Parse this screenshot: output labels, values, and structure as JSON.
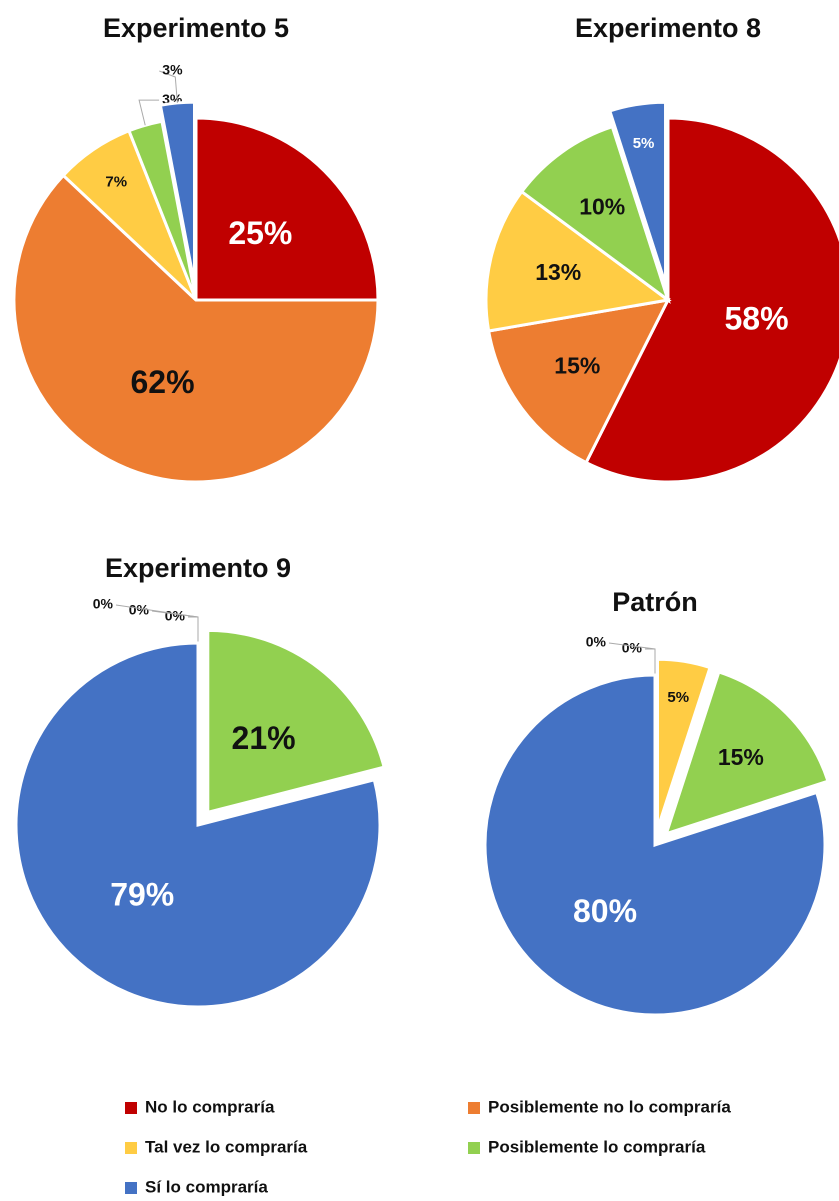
{
  "chart_data": [
    {
      "type": "pie",
      "title": "Experimento 5",
      "categories": [
        "No lo compraría",
        "Posiblemente no lo compraría",
        "Tal vez lo compraría",
        "Posiblemente lo compraría",
        "Sí lo compraría"
      ],
      "colors": [
        "#c00000",
        "#ed7d31",
        "#ffcc44",
        "#92d050",
        "#4472c4"
      ],
      "values": [
        25,
        62,
        7,
        3,
        3
      ],
      "value_labels": [
        "25%",
        "62%",
        "7%",
        "3%",
        "3%"
      ],
      "explode": [
        false,
        false,
        false,
        false,
        true
      ]
    },
    {
      "type": "pie",
      "title": "Experimento 8",
      "categories": [
        "No lo compraría",
        "Posiblemente no lo compraría",
        "Tal vez lo compraría",
        "Posiblemente lo compraría",
        "Sí lo compraría"
      ],
      "colors": [
        "#c00000",
        "#ed7d31",
        "#ffcc44",
        "#92d050",
        "#4472c4"
      ],
      "values": [
        58,
        15,
        13,
        10,
        5
      ],
      "value_labels": [
        "58%",
        "15%",
        "13%",
        "10%",
        "5%"
      ],
      "explode": [
        false,
        false,
        false,
        false,
        true
      ]
    },
    {
      "type": "pie",
      "title": "Experimento 9",
      "categories": [
        "No lo compraría",
        "Posiblemente no lo compraría",
        "Tal vez lo compraría",
        "Posiblemente lo compraría",
        "Sí lo compraría"
      ],
      "colors": [
        "#c00000",
        "#ed7d31",
        "#ffcc44",
        "#92d050",
        "#4472c4"
      ],
      "values": [
        0,
        0,
        0,
        21,
        79
      ],
      "value_labels": [
        "0%",
        "0%",
        "0%",
        "21%",
        "79%"
      ],
      "explode": [
        false,
        false,
        false,
        true,
        false
      ]
    },
    {
      "type": "pie",
      "title": "Patrón",
      "categories": [
        "No lo compraría",
        "Posiblemente no lo compraría",
        "Tal vez lo compraría",
        "Posiblemente lo compraría",
        "Sí lo compraría"
      ],
      "colors": [
        "#c00000",
        "#ed7d31",
        "#ffcc44",
        "#92d050",
        "#4472c4"
      ],
      "values": [
        0,
        0,
        5,
        15,
        80
      ],
      "value_labels": [
        "0%",
        "0%",
        "5%",
        "15%",
        "80%"
      ],
      "explode": [
        false,
        false,
        true,
        true,
        false
      ]
    }
  ]
}
